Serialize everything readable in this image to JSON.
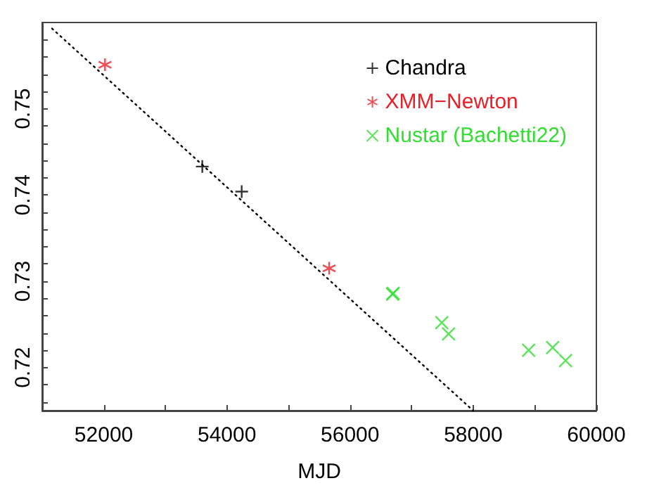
{
  "chart_data": {
    "type": "scatter",
    "xlabel": "MJD",
    "xlim": [
      51000,
      60000
    ],
    "xticks": [
      {
        "value": 51000,
        "label": null
      },
      52000,
      {
        "value": 53000,
        "label": null
      },
      54000,
      {
        "value": 55000,
        "label": null
      },
      56000,
      {
        "value": 57000,
        "label": null
      },
      58000,
      {
        "value": 59000,
        "label": null
      },
      60000
    ],
    "ylim": [
      0.715,
      0.76
    ],
    "yticks": [
      {
        "value": 0.716,
        "label": null
      },
      {
        "value": 0.718,
        "label": null
      },
      0.72,
      {
        "value": 0.722,
        "label": null
      },
      {
        "value": 0.724,
        "label": null
      },
      {
        "value": 0.726,
        "label": null
      },
      {
        "value": 0.728,
        "label": null
      },
      0.73,
      {
        "value": 0.732,
        "label": null
      },
      {
        "value": 0.734,
        "label": null
      },
      {
        "value": 0.736,
        "label": null
      },
      {
        "value": 0.738,
        "label": null
      },
      0.74,
      {
        "value": 0.742,
        "label": null
      },
      {
        "value": 0.744,
        "label": null
      },
      {
        "value": 0.746,
        "label": null
      },
      {
        "value": 0.748,
        "label": null
      },
      0.75,
      {
        "value": 0.752,
        "label": null
      },
      {
        "value": 0.754,
        "label": null
      },
      {
        "value": 0.756,
        "label": null
      },
      {
        "value": 0.758,
        "label": null
      }
    ],
    "legend": "top right",
    "grid": false,
    "series": [
      {
        "name": "Chandra",
        "color": "#000000",
        "marker": "plus",
        "x": [
          53600,
          54240
        ],
        "values": [
          0.7433,
          0.7404
        ]
      },
      {
        "name": "XMM−Newton",
        "color": "#e8202a",
        "x": [
          52020,
          55660
        ],
        "values": [
          0.7551,
          0.7315
        ]
      },
      {
        "name": "Nustar (Bachetti22)",
        "color": "#33dd33",
        "marker": "cross",
        "x": [
          56690,
          56700,
          57490,
          57600,
          58900,
          59290,
          59500
        ],
        "values": [
          0.7285,
          0.7286,
          0.7252,
          0.7239,
          0.722,
          0.7223,
          0.7208
        ]
      },
      {
        "type": "line",
        "color": "#000000",
        "marker": "none",
        "line_style": "dotted",
        "x": [
          51160,
          58000
        ],
        "values": [
          0.7593,
          0.715
        ]
      }
    ]
  }
}
